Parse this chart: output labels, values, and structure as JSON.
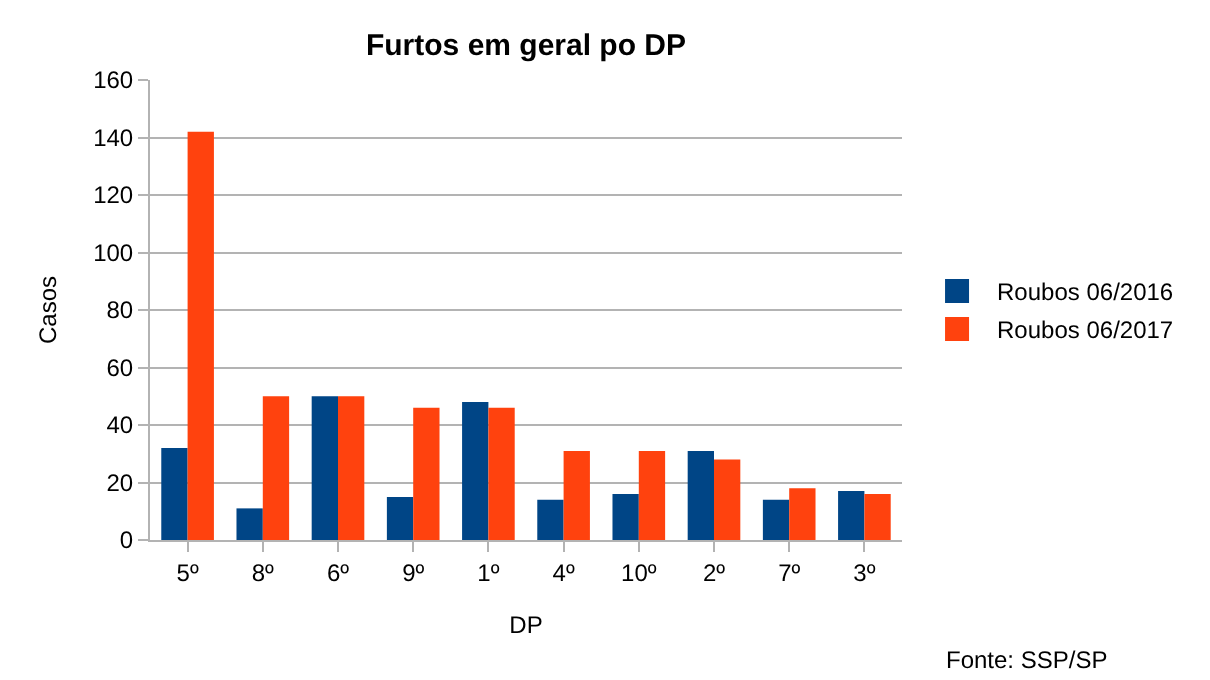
{
  "chart_data": {
    "type": "bar",
    "title": "Furtos em geral po DP",
    "xlabel": "DP",
    "ylabel": "Casos",
    "categories": [
      "5º",
      "8º",
      "6º",
      "9º",
      "1º",
      "4º",
      "10º",
      "2º",
      "7º",
      "3º"
    ],
    "series": [
      {
        "name": "Roubos 06/2016",
        "color": "#004586",
        "values": [
          32,
          11,
          50,
          15,
          48,
          14,
          16,
          31,
          14,
          17
        ]
      },
      {
        "name": "Roubos 06/2017",
        "color": "#ff420e",
        "values": [
          142,
          50,
          50,
          46,
          46,
          31,
          31,
          28,
          18,
          16
        ]
      }
    ],
    "ylim": [
      0,
      160
    ],
    "yticks": [
      0,
      20,
      40,
      60,
      80,
      100,
      120,
      140,
      160
    ],
    "grid": "y",
    "legend": "right",
    "annotations": [
      "Fonte: SSP/SP"
    ]
  }
}
